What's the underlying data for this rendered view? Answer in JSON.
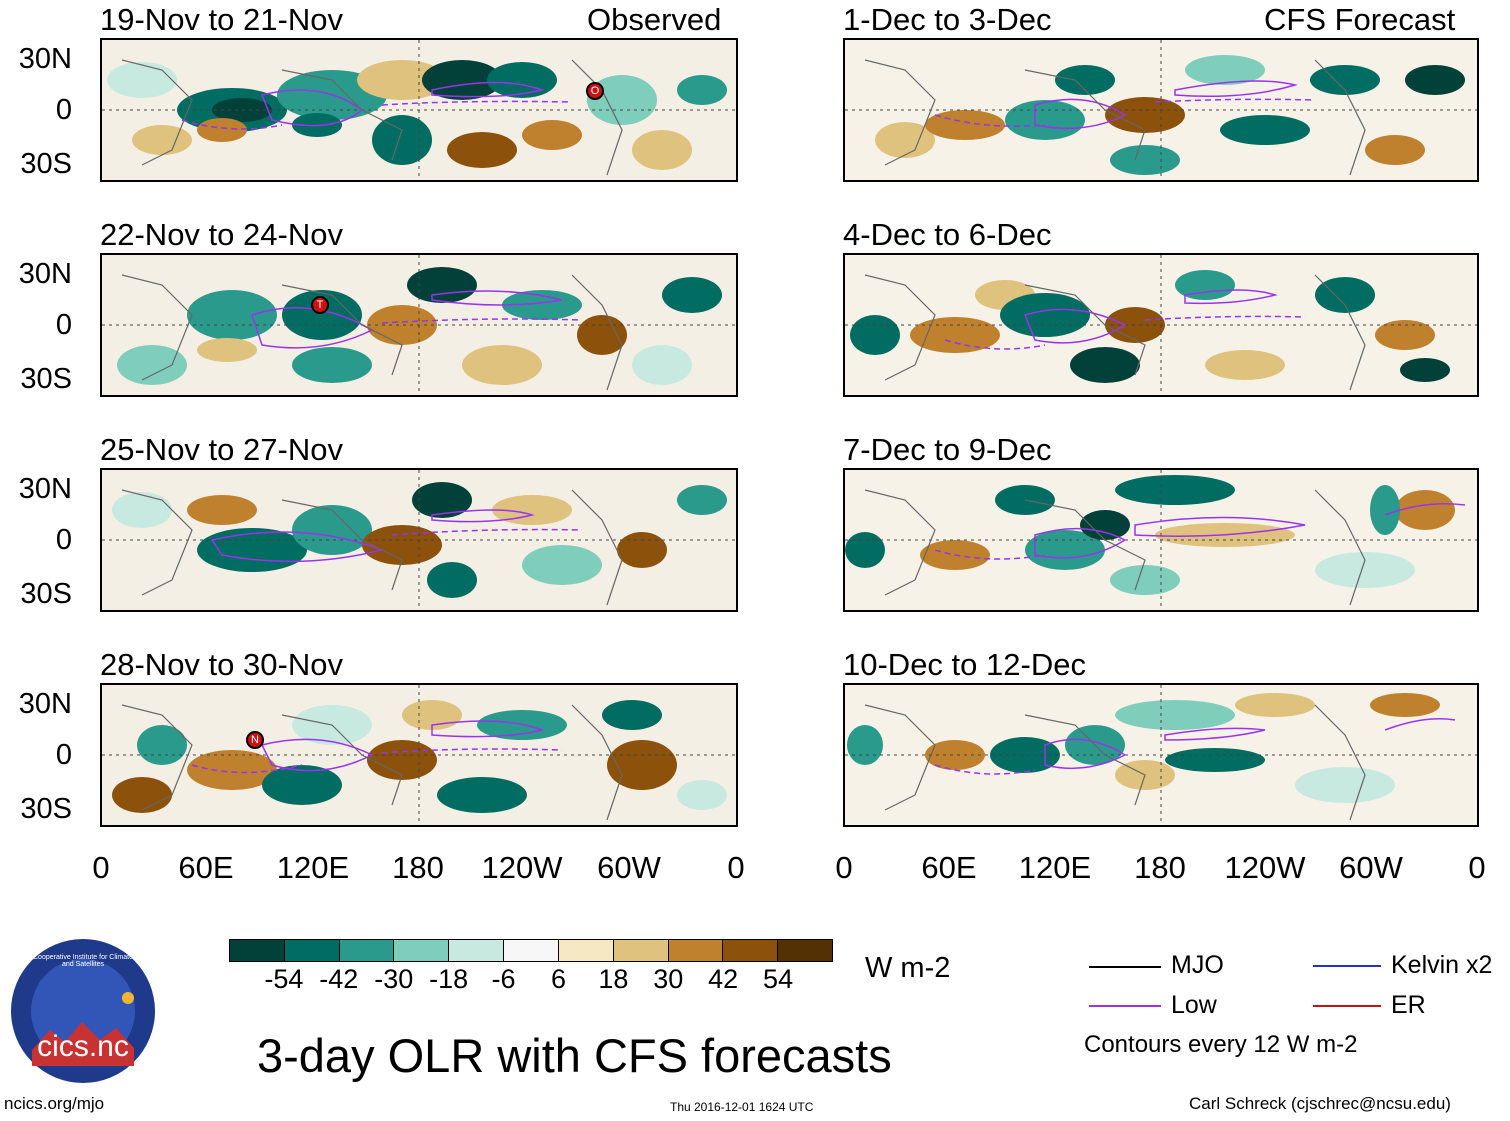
{
  "map": {
    "observed_label": "Observed",
    "forecast_label": "CFS Forecast",
    "y_ticks": [
      "30N",
      "0",
      "30S"
    ],
    "x_ticks": [
      "0",
      "60E",
      "120E",
      "180",
      "120W",
      "60W",
      "0"
    ],
    "observed_panels": [
      {
        "title": "19-Nov to 21-Nov"
      },
      {
        "title": "22-Nov to 24-Nov"
      },
      {
        "title": "25-Nov to 27-Nov"
      },
      {
        "title": "28-Nov to 30-Nov"
      }
    ],
    "forecast_panels": [
      {
        "title": "1-Dec to 3-Dec"
      },
      {
        "title": "4-Dec to 6-Dec"
      },
      {
        "title": "7-Dec to 9-Dec"
      },
      {
        "title": "10-Dec to 12-Dec"
      }
    ],
    "storm_markers": [
      {
        "panel": "19-Nov to 21-Nov",
        "letter": "O"
      },
      {
        "panel": "22-Nov to 24-Nov",
        "letter": "T"
      },
      {
        "panel": "28-Nov to 30-Nov",
        "letter": "N"
      }
    ]
  },
  "colorbar": {
    "unit": "W m-2",
    "labels": [
      "-54",
      "-42",
      "-30",
      "-18",
      "-6",
      "6",
      "18",
      "30",
      "42",
      "54"
    ],
    "colors": [
      "#01413a",
      "#016c62",
      "#2a9a8c",
      "#7fcdbb",
      "#c7e9e0",
      "#f7f7f7",
      "#f6e8c3",
      "#dfc27d",
      "#bf812d",
      "#8c510a",
      "#543005"
    ]
  },
  "legend": {
    "items": [
      {
        "label": "MJO",
        "color": "#000000"
      },
      {
        "label": "Kelvin x2",
        "color": "#2233cc"
      },
      {
        "label": "Low",
        "color": "#9933ee"
      },
      {
        "label": "ER",
        "color": "#cc1111"
      }
    ],
    "note": "Contours every 12 W m-2"
  },
  "footer": {
    "title": "3-day OLR with CFS forecasts",
    "website": "ncics.org/mjo",
    "timestamp": "Thu 2016-12-01 1624 UTC",
    "author": "Carl Schreck (cjschrec@ncsu.edu)",
    "logo_text": "cics.nc",
    "logo_ring_text": "Cooperative Institute for Climate and Satellites"
  }
}
